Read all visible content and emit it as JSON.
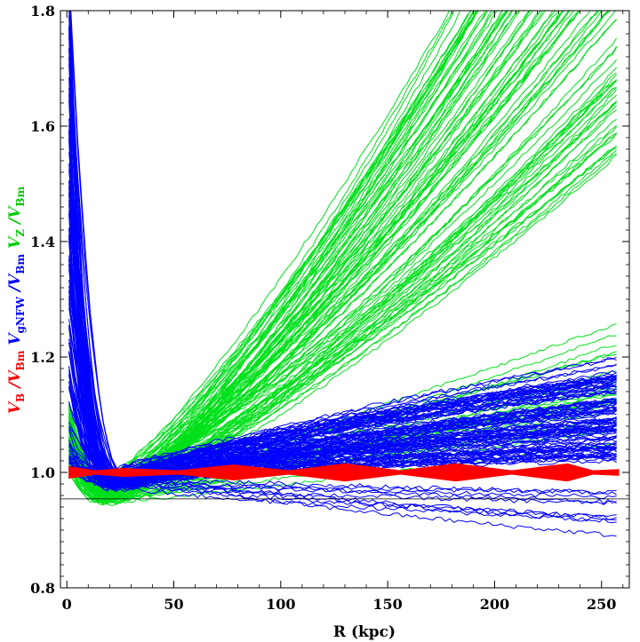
{
  "chart_data": {
    "type": "line",
    "title": "",
    "xlabel": "R  (kpc)",
    "ylabel_parts": [
      {
        "main": "V",
        "sub": "B",
        "mid": " /",
        "main2": "V",
        "sub2": "Bm",
        "color": "#ff0000"
      },
      {
        "main": "V",
        "sub": "gNFW",
        "mid": " /",
        "main2": "V",
        "sub2": "Bm",
        "color": "#0000ff"
      },
      {
        "main": "V",
        "sub": "Z",
        "mid": " /",
        "main2": "V",
        "sub2": "Bm",
        "color": "#00cc00"
      }
    ],
    "xlim": [
      -3,
      263
    ],
    "ylim": [
      0.8,
      1.8
    ],
    "x_ticks": [
      0,
      50,
      100,
      150,
      200,
      250
    ],
    "x_tick_labels": [
      "0",
      "50",
      "100",
      "150",
      "200",
      "250"
    ],
    "y_ticks": [
      0.8,
      1.0,
      1.2,
      1.4,
      1.6,
      1.8
    ],
    "y_tick_labels": [
      "0.8",
      "1.0",
      "1.2",
      "1.4",
      "1.6",
      "1.8"
    ],
    "reference_line_y": 0.954,
    "colors": {
      "VB": "#ff0000",
      "VgNFW": "#0000ff",
      "VZ": "#00e01a"
    },
    "series_groups": [
      {
        "name": "V_Z/V_Bm",
        "count": 120,
        "start_y": [
          1.0,
          1.12
        ],
        "min_y": [
          0.945,
          0.99
        ],
        "min_x": [
          15,
          26
        ],
        "end_y_at_258_steep": [
          1.55,
          2.35
        ],
        "end_y_at_258_shallow": [
          1.05,
          1.27
        ],
        "shallow_fraction": 0.2
      },
      {
        "name": "V_gNFW/V_Bm",
        "count": 120,
        "start_y": [
          1.0,
          1.9
        ],
        "min_y": [
          0.97,
          1.0
        ],
        "min_x": [
          18,
          32
        ],
        "end_y_at_258": [
          0.89,
          1.2
        ]
      },
      {
        "name": "V_B/V_Bm",
        "count": 1,
        "x": [
          1,
          26,
          78,
          130,
          182,
          234,
          258
        ],
        "y": [
          1.0,
          1.0,
          1.0,
          1.0,
          1.0,
          1.0,
          1.0
        ],
        "band_halfwidth": [
          0.01,
          0.007,
          0.013,
          0.015,
          0.015,
          0.015,
          0.005
        ]
      }
    ]
  }
}
